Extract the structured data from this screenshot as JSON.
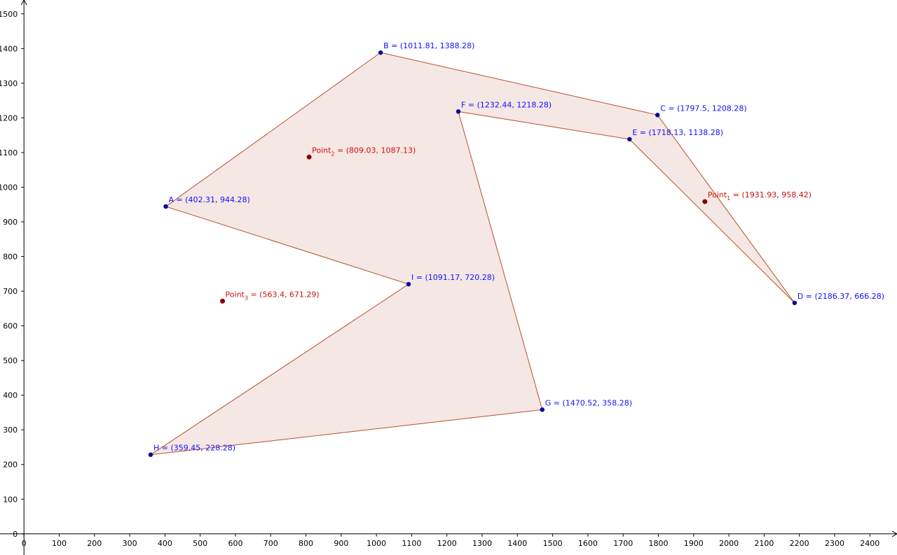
{
  "chart_data": {
    "type": "polygon",
    "xlim": [
      -68,
      2477
    ],
    "ylim": [
      -61,
      1540
    ],
    "xticks": [
      0,
      100,
      200,
      300,
      400,
      500,
      600,
      700,
      800,
      900,
      1000,
      1100,
      1200,
      1300,
      1400,
      1500,
      1600,
      1700,
      1800,
      1900,
      2000,
      2100,
      2200,
      2300,
      2400
    ],
    "yticks": [
      0,
      100,
      200,
      300,
      400,
      500,
      600,
      700,
      800,
      900,
      1000,
      1100,
      1200,
      1300,
      1400,
      1500
    ],
    "polygon_fill": "#f3e3df",
    "polygon_stroke": "#b5532a",
    "vertex_color": "#0000a0",
    "vertex_label_color": "#1010ff",
    "point_color": "#8b0000",
    "point_label_color": "#d01010",
    "vertices": [
      {
        "label": "A = (402.31, 944.28)",
        "x": 402.31,
        "y": 944.28
      },
      {
        "label": "B = (1011.81, 1388.28)",
        "x": 1011.81,
        "y": 1388.28
      },
      {
        "label": "C = (1797.5, 1208.28)",
        "x": 1797.5,
        "y": 1208.28
      },
      {
        "label": "D = (2186.37, 666.28)",
        "x": 2186.37,
        "y": 666.28
      },
      {
        "label": "E = (1718.13, 1138.28)",
        "x": 1718.13,
        "y": 1138.28
      },
      {
        "label": "F = (1232.44, 1218.28)",
        "x": 1232.44,
        "y": 1218.28
      },
      {
        "label": "G = (1470.52, 358.28)",
        "x": 1470.52,
        "y": 358.28
      },
      {
        "label": "H = (359.45, 228.28)",
        "x": 359.45,
        "y": 228.28
      },
      {
        "label": "I = (1091.17, 720.28)",
        "x": 1091.17,
        "y": 720.28
      }
    ],
    "points": [
      {
        "name": "Point",
        "sub": "1",
        "coords": " = (1931.93, 958.42)",
        "x": 1931.93,
        "y": 958.42
      },
      {
        "name": "Point",
        "sub": "2",
        "coords": " = (809.03, 1087.13)",
        "x": 809.03,
        "y": 1087.13
      },
      {
        "name": "Point",
        "sub": "3",
        "coords": " = (563.4, 671.29)",
        "x": 563.4,
        "y": 671.29
      }
    ]
  }
}
